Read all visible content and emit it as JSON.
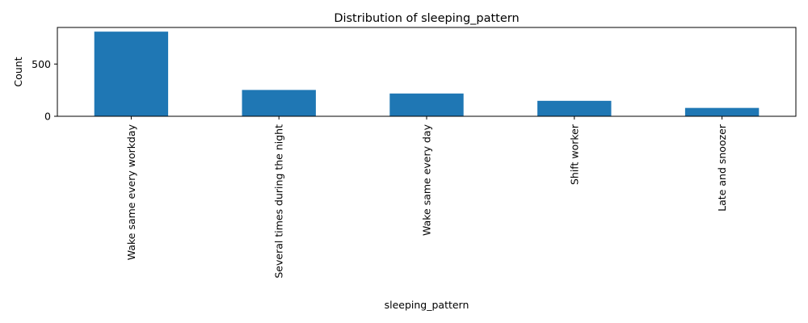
{
  "chart_data": {
    "type": "bar",
    "title": "Distribution of sleeping_pattern",
    "xlabel": "sleeping_pattern",
    "ylabel": "Count",
    "categories": [
      "Wake same every workday",
      "Several times during the night",
      "Wake same every day",
      "Shift worker",
      "Late and snoozer"
    ],
    "values": [
      810,
      252,
      218,
      148,
      80
    ],
    "ylim": [
      0,
      850
    ],
    "yticks": [
      0,
      500
    ],
    "grid": false,
    "legend": "none",
    "colors": {
      "bar": "#1f77b4",
      "axis": "#000000",
      "background": "#ffffff"
    }
  }
}
